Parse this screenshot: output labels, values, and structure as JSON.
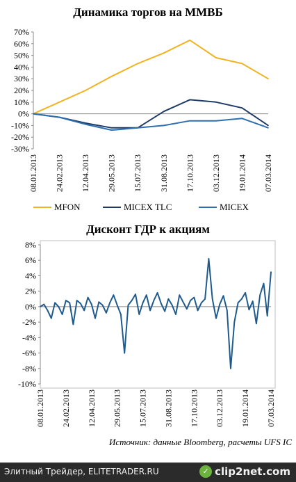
{
  "chart_data": [
    {
      "type": "line",
      "title": "Динамика торгов на ММВБ",
      "ylim": [
        -30,
        70
      ],
      "yticks": [
        "70%",
        "60%",
        "50%",
        "40%",
        "30%",
        "20%",
        "10%",
        "0%",
        "-10%",
        "-20%",
        "-30%"
      ],
      "xticks": [
        "08.01.2013",
        "24.02.2013",
        "12.04.2013",
        "29.05.2013",
        "15.07.2013",
        "31.08.2013",
        "17.10.2013",
        "03.12.2013",
        "19.01.2014",
        "07.03.2014"
      ],
      "x": [
        "08.01.2013",
        "24.02.2013",
        "12.04.2013",
        "29.05.2013",
        "15.07.2013",
        "31.08.2013",
        "17.10.2013",
        "03.12.2013",
        "19.01.2014",
        "07.03.2014"
      ],
      "series": [
        {
          "name": "MFON",
          "color": "#f0b323",
          "values": [
            0,
            10,
            20,
            32,
            43,
            52,
            63,
            48,
            43,
            30
          ]
        },
        {
          "name": "MICEX TLC",
          "color": "#1f3b66",
          "values": [
            0,
            -3,
            -8,
            -12,
            -12,
            2,
            12,
            10,
            5,
            -10
          ]
        },
        {
          "name": "MICEX",
          "color": "#2e6fb0",
          "values": [
            0,
            -3,
            -9,
            -14,
            -12,
            -10,
            -6,
            -6,
            -4,
            -12
          ]
        }
      ],
      "legend": "bottom"
    },
    {
      "type": "line",
      "title": "Дисконт ГДР к акциям",
      "ylim": [
        -10,
        8
      ],
      "yticks": [
        "8%",
        "6%",
        "4%",
        "2%",
        "0%",
        "-2%",
        "-4%",
        "-6%",
        "-8%",
        "-10%"
      ],
      "xticks": [
        "08.01.2013",
        "24.02.2013",
        "12.04.2013",
        "29.05.2013",
        "15.07.2013",
        "31.08.2013",
        "17.10.2013",
        "03.12.2013",
        "19.01.2014",
        "07.03.2014"
      ],
      "series": [
        {
          "name": "",
          "color": "#1f5a8e",
          "values": [
            0,
            0.3,
            -0.5,
            -1.5,
            0.5,
            0,
            -1,
            0.8,
            0.5,
            -2.3,
            0.8,
            0.4,
            -0.5,
            1.2,
            0.3,
            -1.5,
            0.6,
            0.2,
            -0.8,
            0.5,
            1.5,
            0.2,
            -1.0,
            -6.0,
            0.2,
            0.8,
            1.6,
            -1.0,
            0.5,
            1.5,
            -0.5,
            0.8,
            1.8,
            0.4,
            -0.6,
            1.0,
            0.2,
            -1.0,
            1.5,
            0.6,
            -0.3,
            0.8,
            1.2,
            -0.5,
            0.5,
            1.0,
            6.2,
            1.0,
            -1.5,
            0.3,
            1.4,
            -0.5,
            -8.0,
            -2.0,
            0.5,
            1.0,
            1.8,
            -0.4,
            0.7,
            -2.2,
            1.5,
            3.0,
            -1.2,
            4.5
          ]
        }
      ]
    }
  ],
  "source": "Источник: данные Bloomberg, расчеты UFS IC",
  "footer": {
    "text": "Элитный Трейдер, ELITETRADER.RU",
    "logo": "clip2net.com"
  }
}
